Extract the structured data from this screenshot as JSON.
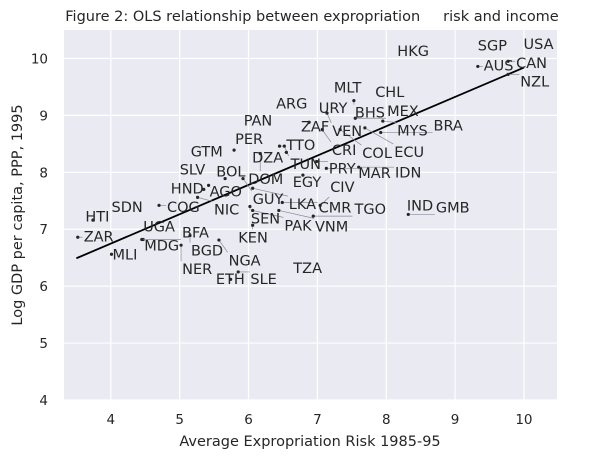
{
  "chart_data": {
    "type": "scatter",
    "title": "Figure 2: OLS relationship between expropriation     risk and income",
    "xlabel": "Average Expropriation Risk 1985-95",
    "ylabel": "Log GDP per capita, PPP, 1995",
    "xlim": [
      3.32,
      10.48
    ],
    "ylim": [
      4,
      10.5
    ],
    "xticks": [
      4,
      5,
      6,
      7,
      8,
      9,
      10
    ],
    "yticks": [
      4,
      5,
      6,
      7,
      8,
      9,
      10
    ],
    "grid": true,
    "background_color": "#eaeaf2",
    "grid_color": "#ffffff",
    "text_color": "#262626",
    "line_color": "#000000",
    "fit_line": {
      "x": [
        3.5,
        10.0
      ],
      "y": [
        6.49,
        9.84
      ]
    },
    "points": [
      {
        "label": "USA",
        "x": 10.02,
        "y": 10.19
      },
      {
        "label": "SGP",
        "x": 9.33,
        "y": 10.14
      },
      {
        "label": "HKG",
        "x": 8.16,
        "y": 10.04
      },
      {
        "label": "CAN",
        "x": 9.77,
        "y": 9.95
      },
      {
        "label": "AUS",
        "x": 9.33,
        "y": 9.86
      },
      {
        "label": "NZL",
        "x": 9.77,
        "y": 9.72
      },
      {
        "label": "MLT",
        "x": 7.24,
        "y": 9.4
      },
      {
        "label": "CHL",
        "x": 7.84,
        "y": 9.32
      },
      {
        "label": "BHS",
        "x": 7.53,
        "y": 9.26
      },
      {
        "label": "ARG",
        "x": 6.4,
        "y": 9.12
      },
      {
        "label": "URY",
        "x": 7.02,
        "y": 9.04
      },
      {
        "label": "VEN",
        "x": 7.14,
        "y": 9.04
      },
      {
        "label": "ZAF",
        "x": 6.88,
        "y": 8.88
      },
      {
        "label": "MEX",
        "x": 7.55,
        "y": 8.95
      },
      {
        "label": "MYS",
        "x": 7.95,
        "y": 8.9
      },
      {
        "label": "PAN",
        "x": 5.93,
        "y": 8.82
      },
      {
        "label": "CRI",
        "x": 7.07,
        "y": 8.75
      },
      {
        "label": "COL",
        "x": 7.33,
        "y": 8.75
      },
      {
        "label": "ECU",
        "x": 7.69,
        "y": 8.78
      },
      {
        "label": "BRA",
        "x": 7.92,
        "y": 8.7
      },
      {
        "label": "TTO",
        "x": 6.45,
        "y": 8.46
      },
      {
        "label": "TUN",
        "x": 6.52,
        "y": 8.46
      },
      {
        "label": "DZA",
        "x": 6.55,
        "y": 8.35
      },
      {
        "label": "DOM",
        "x": 6.17,
        "y": 8.33
      },
      {
        "label": "PER",
        "x": 5.79,
        "y": 8.39
      },
      {
        "label": "GTM",
        "x": 5.16,
        "y": 8.28
      },
      {
        "label": "PRY",
        "x": 6.99,
        "y": 8.19
      },
      {
        "label": "MAR",
        "x": 7.13,
        "y": 8.07
      },
      {
        "label": "IDN",
        "x": 7.6,
        "y": 8.09
      },
      {
        "label": "EGY",
        "x": 6.79,
        "y": 7.95
      },
      {
        "label": "SLV",
        "x": 5.0,
        "y": 7.96
      },
      {
        "label": "BOL",
        "x": 5.66,
        "y": 7.89
      },
      {
        "label": "GUY",
        "x": 5.92,
        "y": 7.89
      },
      {
        "label": "AGO",
        "x": 5.42,
        "y": 7.77
      },
      {
        "label": "HND",
        "x": 5.35,
        "y": 7.7
      },
      {
        "label": "LKA",
        "x": 6.06,
        "y": 7.72
      },
      {
        "label": "NIC",
        "x": 5.26,
        "y": 7.56
      },
      {
        "label": "COG",
        "x": 4.7,
        "y": 7.42
      },
      {
        "label": "SEN",
        "x": 6.02,
        "y": 7.4
      },
      {
        "label": "CMR",
        "x": 6.49,
        "y": 7.47
      },
      {
        "label": "CIV",
        "x": 7.04,
        "y": 7.42
      },
      {
        "label": "PAK",
        "x": 6.06,
        "y": 7.33
      },
      {
        "label": "VNM",
        "x": 6.44,
        "y": 7.33
      },
      {
        "label": "TGO",
        "x": 6.94,
        "y": 7.23
      },
      {
        "label": "IND",
        "x": 8.3,
        "y": 7.33
      },
      {
        "label": "GMB",
        "x": 8.32,
        "y": 7.26
      },
      {
        "label": "SDN",
        "x": 4.01,
        "y": 7.3
      },
      {
        "label": "HTI",
        "x": 3.74,
        "y": 7.16
      },
      {
        "label": "KEN",
        "x": 6.06,
        "y": 7.07
      },
      {
        "label": "UGA",
        "x": 4.47,
        "y": 6.96
      },
      {
        "label": "ZAR",
        "x": 3.52,
        "y": 6.86
      },
      {
        "label": "MDG",
        "x": 4.47,
        "y": 6.82
      },
      {
        "label": "BFA",
        "x": 4.45,
        "y": 6.82
      },
      {
        "label": "BGD",
        "x": 5.15,
        "y": 6.89
      },
      {
        "label": "NGA",
        "x": 5.57,
        "y": 6.81
      },
      {
        "label": "NER",
        "x": 5.02,
        "y": 6.72
      },
      {
        "label": "MLI",
        "x": 4.01,
        "y": 6.56
      },
      {
        "label": "SLE",
        "x": 5.85,
        "y": 6.25
      },
      {
        "label": "ETH",
        "x": 5.74,
        "y": 6.12
      },
      {
        "label": "TZA",
        "x": 6.65,
        "y": 6.23
      }
    ]
  }
}
